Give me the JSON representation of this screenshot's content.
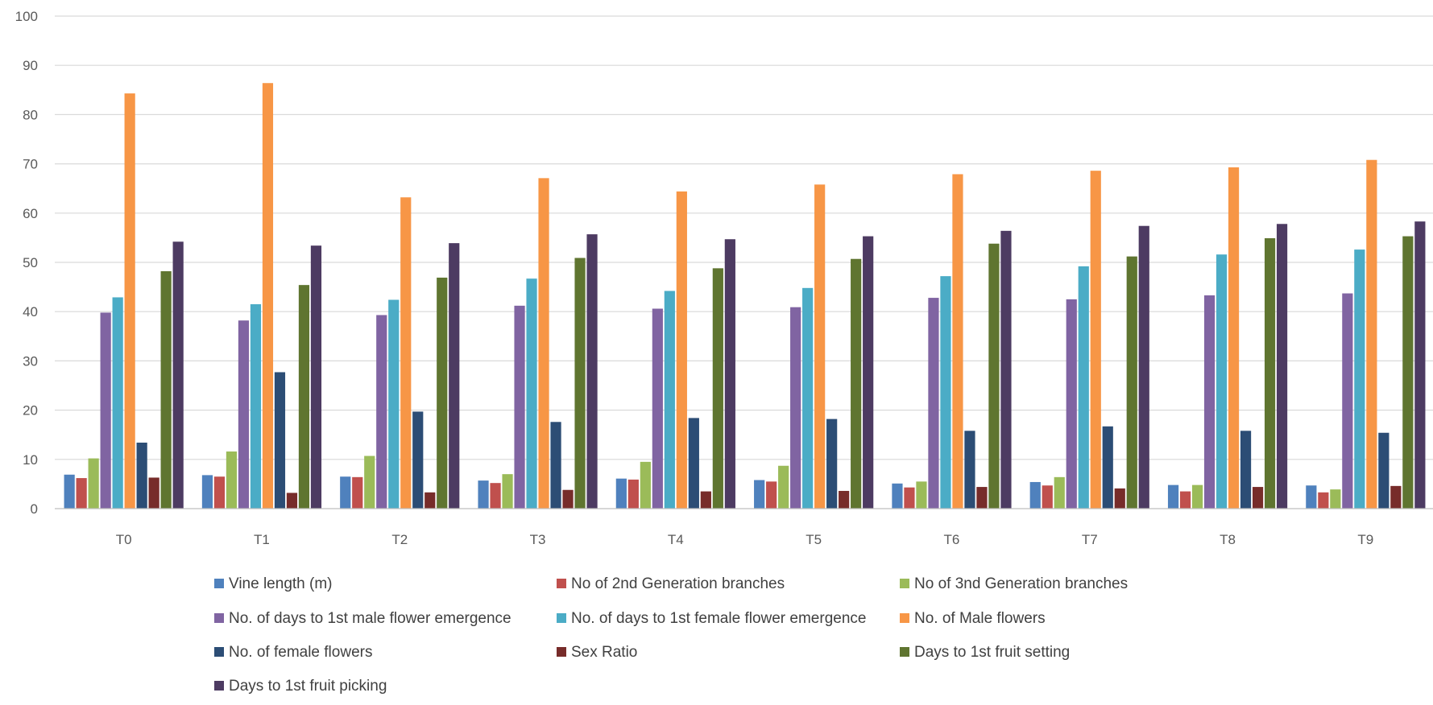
{
  "chart_data": {
    "type": "bar",
    "title": "",
    "xlabel": "",
    "ylabel": "",
    "ylim": [
      0,
      100
    ],
    "yticks": [
      "0",
      "10",
      "20",
      "30",
      "40",
      "50",
      "60",
      "70",
      "80",
      "90",
      "100"
    ],
    "grid": true,
    "legend_position": "bottom",
    "categories": [
      "T0",
      "T1",
      "T2",
      "T3",
      "T4",
      "T5",
      "T6",
      "T7",
      "T8",
      "T9"
    ],
    "series": [
      {
        "name": "Vine length (m)",
        "color": "#4f81bd",
        "values": [
          6.9,
          6.8,
          6.5,
          5.7,
          6.1,
          5.8,
          5.1,
          5.4,
          4.8,
          4.7
        ]
      },
      {
        "name": "No of 2nd Generation branches",
        "color": "#c0504d",
        "values": [
          6.2,
          6.5,
          6.4,
          5.2,
          5.9,
          5.5,
          4.3,
          4.7,
          3.5,
          3.3
        ]
      },
      {
        "name": "No of 3nd Generation branches",
        "color": "#9bbb59",
        "values": [
          10.2,
          11.6,
          10.7,
          7.0,
          9.5,
          8.7,
          5.5,
          6.4,
          4.8,
          3.9
        ]
      },
      {
        "name": "No. of days to 1st male flower emergence",
        "color": "#8064a2",
        "values": [
          39.8,
          38.2,
          39.3,
          41.2,
          40.6,
          40.9,
          42.8,
          42.5,
          43.3,
          43.7
        ]
      },
      {
        "name": "No. of days to 1st female flower emergence",
        "color": "#4bacc6",
        "values": [
          42.9,
          41.5,
          42.4,
          46.7,
          44.2,
          44.8,
          47.2,
          49.2,
          51.6,
          52.6
        ]
      },
      {
        "name": "No. of Male flowers",
        "color": "#f79646",
        "values": [
          84.3,
          86.4,
          63.2,
          67.1,
          64.4,
          65.8,
          67.9,
          68.6,
          69.3,
          70.8
        ]
      },
      {
        "name": "No. of female flowers",
        "color": "#2c4d75",
        "values": [
          13.4,
          27.7,
          19.7,
          17.6,
          18.4,
          18.2,
          15.8,
          16.7,
          15.8,
          15.4
        ]
      },
      {
        "name": "Sex Ratio",
        "color": "#772c2a",
        "values": [
          6.3,
          3.2,
          3.3,
          3.8,
          3.5,
          3.6,
          4.4,
          4.1,
          4.4,
          4.6
        ]
      },
      {
        "name": "Days to 1st fruit setting",
        "color": "#5f7530",
        "values": [
          48.2,
          45.4,
          46.9,
          50.9,
          48.8,
          50.7,
          53.8,
          51.2,
          54.9,
          55.3
        ]
      },
      {
        "name": "Days to 1st fruit picking",
        "color": "#4d3b62",
        "values": [
          54.2,
          53.4,
          53.9,
          55.7,
          54.7,
          55.3,
          56.4,
          57.4,
          57.8,
          58.3
        ]
      }
    ]
  }
}
